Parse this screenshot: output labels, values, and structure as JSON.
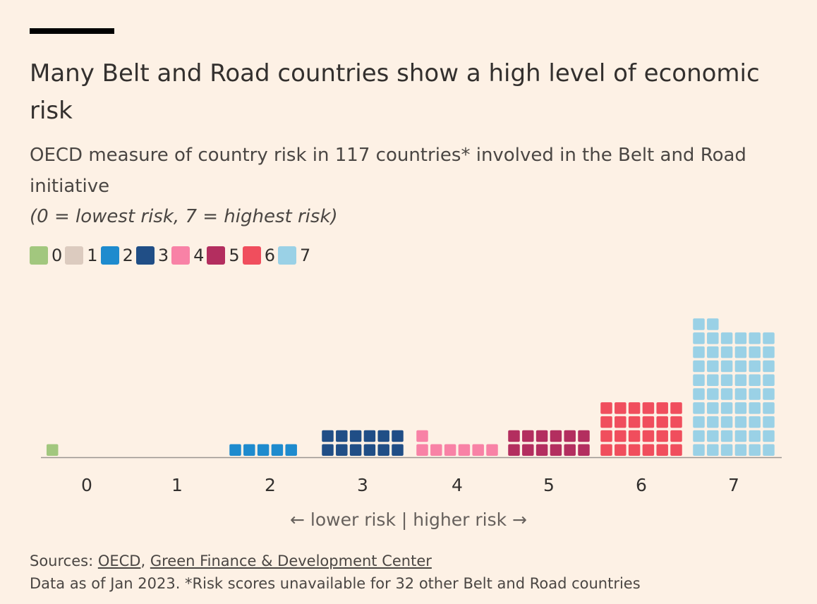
{
  "title": "Many Belt and Road countries show a high level of economic risk",
  "subtitle": "OECD measure of country risk in 117 countries* involved in the Belt and Road initiative",
  "scale_note": "(0 = lowest risk, 7 = highest risk)",
  "axis_caption": "← lower risk | higher risk →",
  "sources": {
    "prefix": "Sources: ",
    "links": [
      "OECD",
      "Green Finance & Development Center"
    ],
    "separator": ", ",
    "data_note": "Data as of Jan 2023. *Risk scores unavailable for 32 other Belt and Road countries"
  },
  "chart_data": {
    "type": "waffle-bar",
    "categories": [
      "0",
      "1",
      "2",
      "3",
      "4",
      "5",
      "6",
      "7"
    ],
    "values": [
      1,
      0,
      5,
      12,
      7,
      12,
      24,
      56
    ],
    "colors": [
      "#a2c77e",
      "#dccbbf",
      "#1e8bce",
      "#204e86",
      "#f882a6",
      "#b32e5f",
      "#f04e5d",
      "#9ad1e6"
    ],
    "legend": [
      "0",
      "1",
      "2",
      "3",
      "4",
      "5",
      "6",
      "7"
    ],
    "legend_placement": "top-left",
    "grid": false,
    "xlabel": "← lower risk | higher risk →",
    "ylabel": ""
  }
}
